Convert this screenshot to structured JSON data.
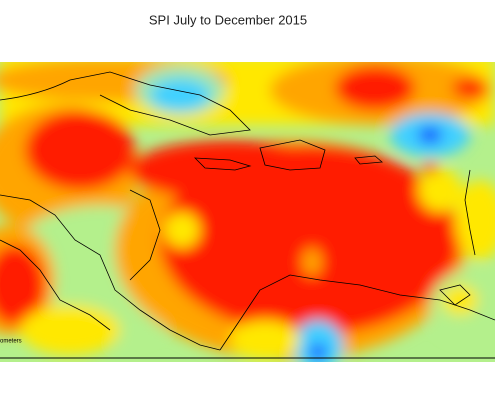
{
  "title": "SPI July to  December 2015",
  "scale_label": "ometers"
}
